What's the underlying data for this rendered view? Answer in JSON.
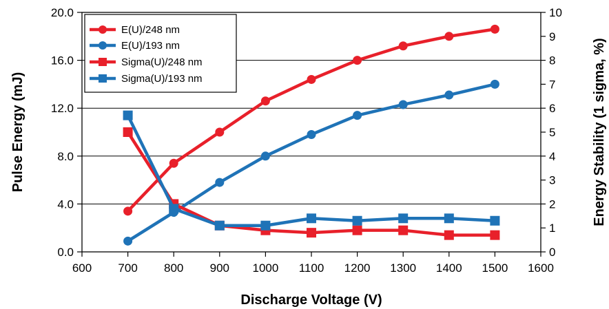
{
  "chart_data": {
    "type": "line",
    "title": "",
    "xlabel": "Discharge Voltage (V)",
    "ylabel": "Pulse Energy (mJ)",
    "y2label": "Energy Stability (1 sigma, %)",
    "xlim": [
      600,
      1600
    ],
    "ylim": [
      0,
      20
    ],
    "y2lim": [
      0,
      10
    ],
    "x_ticks": [
      "600",
      "700",
      "800",
      "900",
      "1000",
      "1100",
      "1200",
      "1300",
      "1400",
      "1500",
      "1600"
    ],
    "y_ticks": [
      "0.0",
      "4.0",
      "8.0",
      "12.0",
      "16.0",
      "20.0"
    ],
    "y2_ticks": [
      "0",
      "1",
      "2",
      "3",
      "4",
      "5",
      "6",
      "7",
      "8",
      "9",
      "10"
    ],
    "x": [
      700,
      800,
      900,
      1000,
      1100,
      1200,
      1300,
      1400,
      1500
    ],
    "grid": "horizontal",
    "legend_position": "top-left",
    "series": [
      {
        "name": "E(U)/248 nm",
        "axis": "left",
        "marker": "circle",
        "color": "#e8202a",
        "values": [
          3.4,
          7.4,
          10.0,
          12.6,
          14.4,
          16.0,
          17.2,
          18.0,
          18.6
        ]
      },
      {
        "name": "E(U)/193 nm",
        "axis": "left",
        "marker": "circle",
        "color": "#1f73b7",
        "values": [
          0.9,
          3.3,
          5.8,
          8.0,
          9.8,
          11.4,
          12.3,
          13.1,
          14.0
        ]
      },
      {
        "name": "Sigma(U)/248 nm",
        "axis": "right",
        "marker": "square",
        "color": "#e8202a",
        "values": [
          5.0,
          2.0,
          1.1,
          0.9,
          0.8,
          0.9,
          0.9,
          0.7,
          0.7
        ]
      },
      {
        "name": "Sigma(U)/193 nm",
        "axis": "right",
        "marker": "square",
        "color": "#1f73b7",
        "values": [
          5.7,
          1.8,
          1.1,
          1.1,
          1.4,
          1.3,
          1.4,
          1.4,
          1.3
        ]
      }
    ]
  }
}
